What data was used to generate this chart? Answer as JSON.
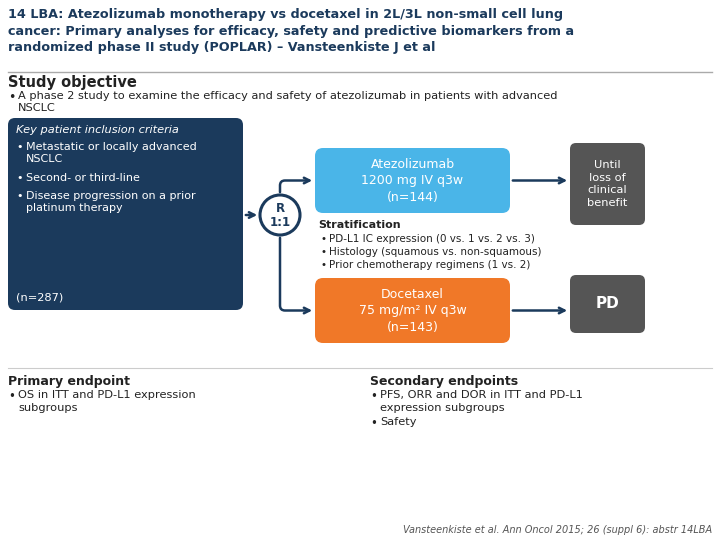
{
  "title_line1": "14 LBA: Atezolizumab monotherapy vs docetaxel in 2L/3L non-small cell lung",
  "title_line2": "cancer: Primary analyses for efficacy, safety and predictive biomarkers from a",
  "title_line3": "randomized phase II study (POPLAR) – Vansteenkiste J et al",
  "section1_header": "Study objective",
  "section1_bullet": "A phase 2 study to examine the efficacy and safety of atezolizumab in patients with advanced\nNSCLC",
  "left_box_header": "Key patient inclusion criteria",
  "left_box_bullets": [
    "Metastatic or locally advanced\nNSCLC",
    "Second- or third-line",
    "Disease progression on a prior\nplatinum therapy"
  ],
  "left_box_n": "(n=287)",
  "left_box_color": "#1b3a5c",
  "r_circle_text": "R\n1:1",
  "r_circle_border": "#1b3a5c",
  "atez_box_text": "Atezolizumab\n1200 mg IV q3w\n(n=144)",
  "atez_box_color": "#4ab5e8",
  "docetaxel_box_text": "Docetaxel\n75 mg/m² IV q3w\n(n=143)",
  "docetaxel_box_color": "#f07828",
  "strat_header": "Stratification",
  "strat_bullets": [
    "PD-L1 IC expression (0 vs. 1 vs. 2 vs. 3)",
    "Histology (squamous vs. non-squamous)",
    "Prior chemotherapy regimens (1 vs. 2)"
  ],
  "until_box_text": "Until\nloss of\nclinical\nbenefit",
  "until_box_color": "#555555",
  "pd_box_text": "PD",
  "pd_box_color": "#555555",
  "primary_header": "Primary endpoint",
  "primary_bullet1": "OS in ITT and PD-L1 expression",
  "primary_bullet2": "subgroups",
  "secondary_header": "Secondary endpoints",
  "secondary_bullet1": "PFS, ORR and DOR in ITT and PD-L1",
  "secondary_bullet2": "expression subgroups",
  "secondary_bullet3": "Safety",
  "footnote": "Vansteenkiste et al. Ann Oncol 2015; 26 (suppl 6): abstr 14LBA",
  "bg_color": "#ffffff",
  "text_color": "#222222",
  "title_color": "#1b3a5c",
  "arrow_color": "#1b3a5c"
}
